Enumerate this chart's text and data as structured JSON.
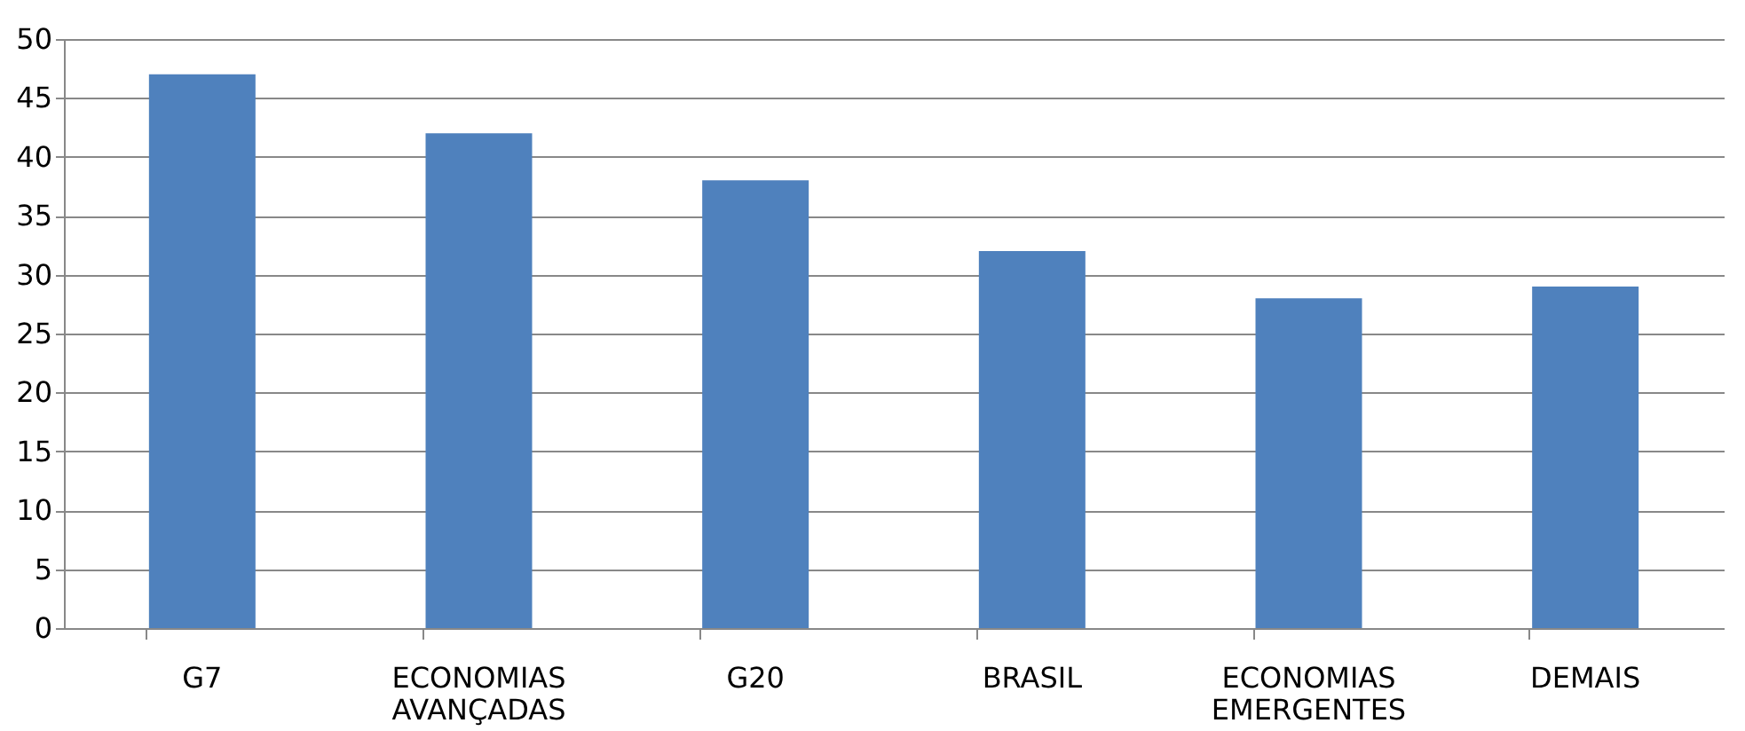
{
  "chart_data": {
    "type": "bar",
    "categories": [
      "G7",
      "ECONOMIAS AVANÇADAS",
      "G20",
      "BRASIL",
      "ECONOMIAS EMERGENTES",
      "DEMAIS"
    ],
    "values": [
      47,
      42,
      38,
      32,
      28,
      29
    ],
    "color": "#4f81bd",
    "ylim": [
      0,
      50
    ],
    "yticks": [
      0,
      5,
      10,
      15,
      20,
      25,
      30,
      35,
      40,
      45,
      50
    ],
    "grid": "y"
  }
}
